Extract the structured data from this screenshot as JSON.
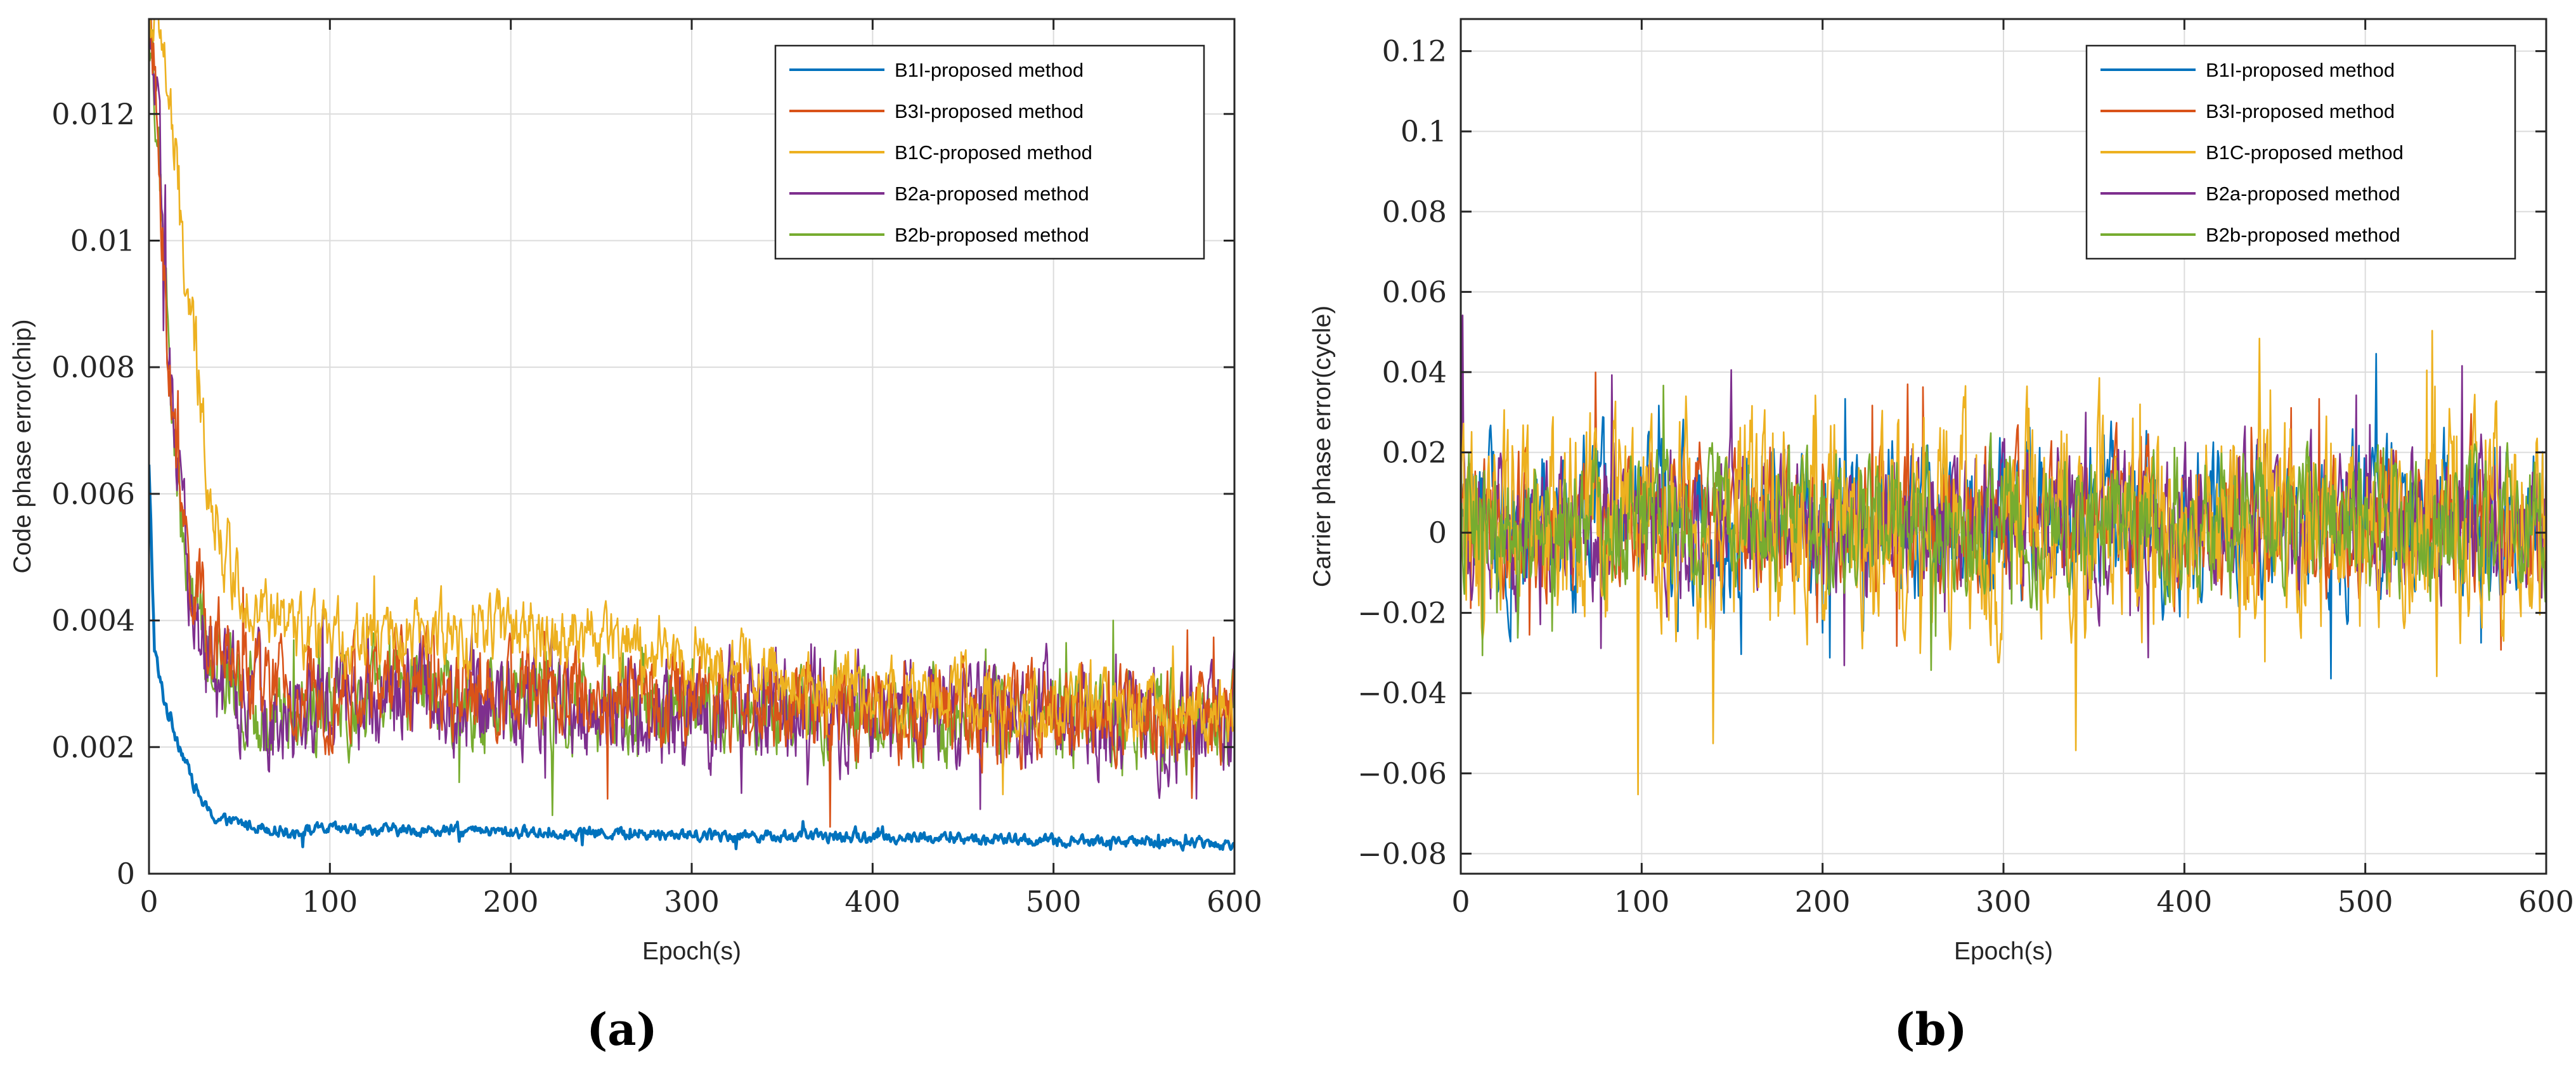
{
  "chart_data": [
    {
      "type": "line",
      "panel_label": "(a)",
      "title": "",
      "xlabel": "Epoch(s)",
      "ylabel": "Code phase error(chip)",
      "xlim": [
        0,
        600
      ],
      "ylim": [
        0,
        0.0135
      ],
      "xticks": [
        0,
        100,
        200,
        300,
        400,
        500,
        600
      ],
      "xtick_labels": [
        "0",
        "100",
        "200",
        "300",
        "400",
        "500",
        "600"
      ],
      "yticks": [
        0,
        0.002,
        0.004,
        0.006,
        0.008,
        0.01,
        0.012
      ],
      "ytick_labels": [
        "0",
        "0.002",
        "0.004",
        "0.006",
        "0.008",
        "0.01",
        "0.012"
      ],
      "grid": true,
      "legend_position": "top-right",
      "draw_order": [
        4,
        3,
        0,
        1,
        2
      ],
      "series": [
        {
          "name": "B1I-proposed method",
          "color": "#0072BD",
          "x": [
            0,
            3,
            6,
            10,
            15,
            20,
            25,
            30,
            35,
            40,
            50,
            60,
            70,
            80,
            90,
            100,
            150,
            200,
            250,
            300,
            350,
            400,
            450,
            500,
            550,
            600
          ],
          "values": [
            0.0064,
            0.0036,
            0.003,
            0.0026,
            0.0022,
            0.0018,
            0.0014,
            0.0011,
            0.0009,
            0.00085,
            0.0008,
            0.00075,
            0.0007,
            0.00065,
            0.0007,
            0.0007,
            0.00068,
            0.00066,
            0.00064,
            0.00062,
            0.0006,
            0.00058,
            0.00055,
            0.00052,
            0.0005,
            0.00048
          ],
          "noise": [
            0.0002,
            0.00015,
            0.0002,
            0.00015,
            0.00015,
            0.0001,
            0.0001,
            0.0001,
            0.0001,
            0.0001,
            0.0001,
            0.0001,
            0.0001,
            0.0001,
            0.0001,
            0.0001,
            0.0001,
            0.0001,
            0.0001,
            0.0001,
            0.0001,
            0.0001,
            0.0001,
            0.0001,
            0.0001,
            0.0001
          ]
        },
        {
          "name": "B3I-proposed method",
          "color": "#D95319",
          "x": [
            0,
            3,
            6,
            10,
            15,
            20,
            25,
            30,
            35,
            40,
            50,
            60,
            70,
            80,
            90,
            100,
            150,
            200,
            250,
            300,
            350,
            400,
            450,
            500,
            550,
            600
          ],
          "values": [
            0.0135,
            0.0125,
            0.011,
            0.0085,
            0.0065,
            0.0052,
            0.0045,
            0.0042,
            0.0038,
            0.0035,
            0.0032,
            0.003,
            0.0029,
            0.0027,
            0.0028,
            0.0029,
            0.0031,
            0.0029,
            0.0028,
            0.0027,
            0.0026,
            0.0026,
            0.0025,
            0.0025,
            0.0025,
            0.0024
          ],
          "noise": [
            0.0008,
            0.0008,
            0.0008,
            0.0008,
            0.0008,
            0.0008,
            0.0008,
            0.0008,
            0.0008,
            0.0008,
            0.0008,
            0.0008,
            0.0008,
            0.0008,
            0.0008,
            0.0008,
            0.0008,
            0.0008,
            0.0008,
            0.0008,
            0.0008,
            0.0008,
            0.0008,
            0.0008,
            0.0008,
            0.0008
          ]
        },
        {
          "name": "B1C-proposed method",
          "color": "#EDB120",
          "x": [
            0,
            3,
            6,
            10,
            15,
            20,
            25,
            30,
            35,
            40,
            50,
            60,
            70,
            80,
            90,
            100,
            150,
            200,
            250,
            300,
            350,
            400,
            450,
            500,
            550,
            600
          ],
          "values": [
            0.0135,
            0.0135,
            0.0135,
            0.0125,
            0.011,
            0.0095,
            0.0082,
            0.007,
            0.006,
            0.0052,
            0.0046,
            0.0042,
            0.004,
            0.0038,
            0.0037,
            0.0037,
            0.0038,
            0.0039,
            0.0037,
            0.0034,
            0.0031,
            0.0029,
            0.0028,
            0.0026,
            0.0026,
            0.0025
          ],
          "noise": [
            0.0006,
            0.0006,
            0.0006,
            0.0007,
            0.0008,
            0.0008,
            0.0008,
            0.0007,
            0.0007,
            0.0007,
            0.0006,
            0.0006,
            0.0006,
            0.0006,
            0.0006,
            0.0006,
            0.0006,
            0.0006,
            0.0006,
            0.0006,
            0.0006,
            0.0006,
            0.0006,
            0.0006,
            0.0006,
            0.0006
          ]
        },
        {
          "name": "B2a-proposed method",
          "color": "#7E2F8E",
          "x": [
            0,
            3,
            6,
            10,
            15,
            20,
            25,
            30,
            35,
            40,
            50,
            60,
            70,
            80,
            90,
            100,
            150,
            200,
            250,
            300,
            350,
            400,
            450,
            500,
            550,
            600
          ],
          "values": [
            0.0135,
            0.0125,
            0.011,
            0.0085,
            0.0062,
            0.005,
            0.0042,
            0.0037,
            0.0033,
            0.0031,
            0.0028,
            0.0027,
            0.0026,
            0.0025,
            0.0026,
            0.0027,
            0.0029,
            0.0027,
            0.0027,
            0.0026,
            0.0025,
            0.0025,
            0.0025,
            0.0025,
            0.0024,
            0.0024
          ],
          "noise": [
            0.0009,
            0.0009,
            0.0009,
            0.0009,
            0.0009,
            0.0009,
            0.0009,
            0.0009,
            0.0009,
            0.0009,
            0.0009,
            0.0009,
            0.0009,
            0.0009,
            0.0009,
            0.0009,
            0.0009,
            0.0009,
            0.0009,
            0.0009,
            0.0009,
            0.0009,
            0.0009,
            0.0009,
            0.0009,
            0.0009
          ]
        },
        {
          "name": "B2b-proposed method",
          "color": "#77AC30",
          "x": [
            0,
            3,
            6,
            10,
            15,
            20,
            25,
            30,
            35,
            40,
            50,
            60,
            70,
            80,
            90,
            100,
            150,
            200,
            250,
            300,
            350,
            400,
            450,
            500,
            550,
            600
          ],
          "values": [
            0.0135,
            0.0125,
            0.011,
            0.0085,
            0.0062,
            0.005,
            0.0042,
            0.0037,
            0.0033,
            0.0031,
            0.0028,
            0.0027,
            0.0026,
            0.0025,
            0.0026,
            0.0027,
            0.0029,
            0.0027,
            0.0027,
            0.0026,
            0.0025,
            0.0025,
            0.0025,
            0.0025,
            0.0024,
            0.0024
          ],
          "noise": [
            0.0008,
            0.0008,
            0.0008,
            0.0008,
            0.0008,
            0.0008,
            0.0008,
            0.0008,
            0.0008,
            0.0008,
            0.0008,
            0.0008,
            0.0008,
            0.0008,
            0.0008,
            0.0008,
            0.0008,
            0.0008,
            0.0008,
            0.0008,
            0.0008,
            0.0008,
            0.0008,
            0.0008,
            0.0008,
            0.0008
          ]
        }
      ]
    },
    {
      "type": "line",
      "panel_label": "(b)",
      "title": "",
      "xlabel": "Epoch(s)",
      "ylabel": "Carrier phase error(cycle)",
      "xlim": [
        0,
        600
      ],
      "ylim": [
        -0.085,
        0.128
      ],
      "xticks": [
        0,
        100,
        200,
        300,
        400,
        500,
        600
      ],
      "xtick_labels": [
        "0",
        "100",
        "200",
        "300",
        "400",
        "500",
        "600"
      ],
      "yticks": [
        -0.08,
        -0.06,
        -0.04,
        -0.02,
        0,
        0.02,
        0.04,
        0.06,
        0.08,
        0.1,
        0.12
      ],
      "ytick_labels": [
        "−0.08",
        "−0.06",
        "−0.04",
        "−0.02",
        "0",
        "0.02",
        "0.04",
        "0.06",
        "0.08",
        "0.1",
        "0.12"
      ],
      "grid": true,
      "legend_position": "top-right",
      "draw_order": [
        0,
        1,
        3,
        2,
        4
      ],
      "series": [
        {
          "name": "B1I-proposed method",
          "color": "#0072BD",
          "x": [
            0,
            600
          ],
          "values": [
            0.003,
            0.003
          ],
          "noise": [
            0.02,
            0.02
          ]
        },
        {
          "name": "B3I-proposed method",
          "color": "#D95319",
          "x": [
            0,
            600
          ],
          "values": [
            0.003,
            0.003
          ],
          "noise": [
            0.018,
            0.018
          ]
        },
        {
          "name": "B1C-proposed method",
          "color": "#EDB120",
          "x": [
            0,
            600
          ],
          "values": [
            0.003,
            0.003
          ],
          "noise": [
            0.028,
            0.028
          ]
        },
        {
          "name": "B2a-proposed method",
          "color": "#7E2F8E",
          "x": [
            0,
            600
          ],
          "values": [
            0.003,
            0.003
          ],
          "noise": [
            0.019,
            0.019
          ]
        },
        {
          "name": "B2b-proposed method",
          "color": "#77AC30",
          "x": [
            0,
            600
          ],
          "values": [
            0.003,
            0.003
          ],
          "noise": [
            0.017,
            0.017
          ]
        }
      ]
    }
  ]
}
